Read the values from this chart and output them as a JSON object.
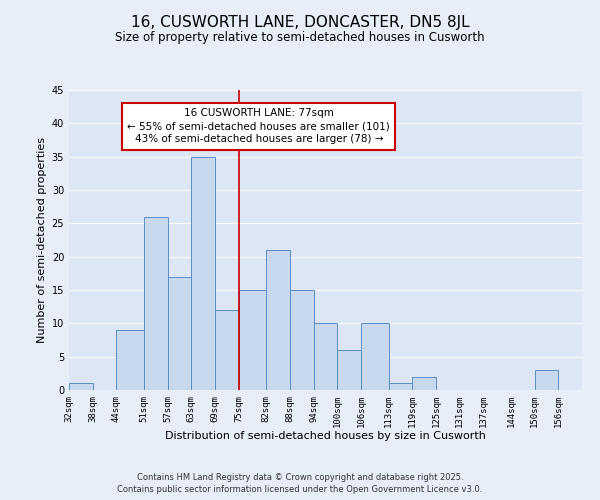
{
  "title": "16, CUSWORTH LANE, DONCASTER, DN5 8JL",
  "subtitle": "Size of property relative to semi-detached houses in Cusworth",
  "xlabel": "Distribution of semi-detached houses by size in Cusworth",
  "ylabel": "Number of semi-detached properties",
  "bin_edges": [
    32,
    38,
    44,
    51,
    57,
    63,
    69,
    75,
    82,
    88,
    94,
    100,
    106,
    113,
    119,
    125,
    131,
    137,
    144,
    150,
    156,
    162
  ],
  "bar_heights": [
    1,
    0,
    9,
    26,
    17,
    35,
    12,
    15,
    21,
    15,
    10,
    6,
    10,
    1,
    2,
    0,
    0,
    0,
    0,
    3,
    0
  ],
  "tick_labels": [
    "32sqm",
    "38sqm",
    "44sqm",
    "51sqm",
    "57sqm",
    "63sqm",
    "69sqm",
    "75sqm",
    "82sqm",
    "88sqm",
    "94sqm",
    "100sqm",
    "106sqm",
    "113sqm",
    "119sqm",
    "125sqm",
    "131sqm",
    "137sqm",
    "144sqm",
    "150sqm",
    "156sqm"
  ],
  "bar_color": "#c8d9ee",
  "bar_edge_color": "#5b8dc8",
  "bg_color": "#e8eef8",
  "plot_bg_color": "#dce6f5",
  "grid_color": "#ffffff",
  "vline_x": 75,
  "vline_color": "#cc0000",
  "annotation_title": "16 CUSWORTH LANE: 77sqm",
  "annotation_line1": "← 55% of semi-detached houses are smaller (101)",
  "annotation_line2": "43% of semi-detached houses are larger (78) →",
  "annotation_box_color": "#ffffff",
  "annotation_border_color": "#cc0000",
  "ylim": [
    0,
    45
  ],
  "footer1": "Contains HM Land Registry data © Crown copyright and database right 2025.",
  "footer2": "Contains public sector information licensed under the Open Government Licence v3.0.",
  "title_fontsize": 11,
  "subtitle_fontsize": 8.5,
  "axis_label_fontsize": 8,
  "tick_fontsize": 6.5,
  "annotation_fontsize": 7.5,
  "footer_fontsize": 6
}
